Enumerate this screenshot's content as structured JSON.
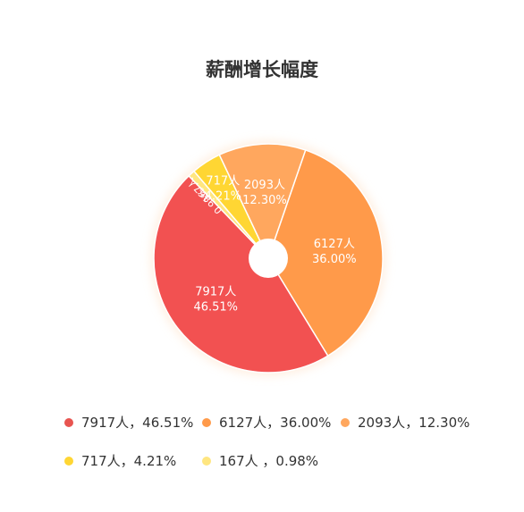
{
  "title": "薪酬增长幅度",
  "chart_data": {
    "type": "pie",
    "title": "薪酬增长幅度",
    "slices": [
      {
        "label": "6127人",
        "percent_label": "36.00%",
        "value": 6127,
        "percent": 36.0,
        "color": "#FF9A4A"
      },
      {
        "label": "7917人",
        "percent_label": "46.51%",
        "value": 7917,
        "percent": 46.51,
        "color": "#F25151"
      },
      {
        "label": "167人",
        "percent_label": "0.98%",
        "value": 167,
        "percent": 0.98,
        "color": "#FFE680"
      },
      {
        "label": "717人",
        "percent_label": "4.21%",
        "value": 717,
        "percent": 4.21,
        "color": "#FFD633"
      },
      {
        "label": "2093人",
        "percent_label": "12.30%",
        "value": 2093,
        "percent": 12.3,
        "color": "#FFA75E"
      }
    ],
    "legend": [
      {
        "text": "7917人，46.51%",
        "color": "#E85450"
      },
      {
        "text": "6127人，36.00%",
        "color": "#FF9A4A"
      },
      {
        "text": "2093人，12.30%",
        "color": "#FFA75E"
      },
      {
        "text": "717人，4.21%",
        "color": "#FFD633"
      },
      {
        "text": "167人 ，0.98%",
        "color": "#FFE680"
      }
    ],
    "legend_position": "bottom"
  }
}
